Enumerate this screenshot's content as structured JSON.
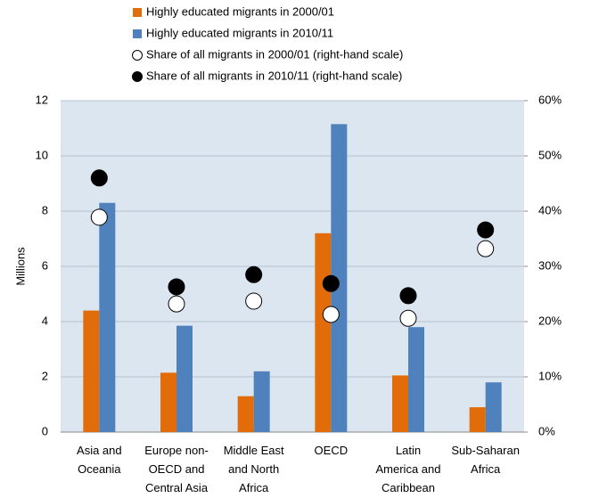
{
  "chart_data": {
    "type": "bar",
    "y_label": "Millions",
    "categories": [
      "Asia and\nOceania",
      "Europe non-\nOECD and\nCentral Asia",
      "Middle East\nand North\nAfrica",
      "OECD",
      "Latin\nAmerica and\nCaribbean",
      "Sub-Saharan\nAfrica"
    ],
    "series": [
      {
        "name": "Highly educated migrants in 2000/01",
        "color": "#e36c0a",
        "values": [
          4.4,
          2.15,
          1.3,
          7.2,
          2.05,
          0.9
        ]
      },
      {
        "name": "Highly educated migrants in 2010/11",
        "color": "#4f81bd",
        "values": [
          8.3,
          3.85,
          2.2,
          11.15,
          3.8,
          1.8
        ]
      },
      {
        "name": "Share of all migrants in 2000/01 (right-hand scale)",
        "color": "#ffffff",
        "axis": "y2",
        "values": [
          38.9,
          23.2,
          23.7,
          21.3,
          20.6,
          33.2
        ]
      },
      {
        "name": "Share of all migrants in 2010/11 (right-hand scale)",
        "color": "#000000",
        "axis": "y2",
        "values": [
          46,
          26.3,
          28.5,
          26.9,
          24.7,
          36.6
        ]
      }
    ],
    "ylim": [
      0,
      12
    ],
    "yticks": [
      0,
      2,
      4,
      6,
      8,
      10,
      12
    ],
    "y2lim": [
      0,
      60
    ],
    "y2ticks": [
      {
        "value": 0,
        "label": "0%"
      },
      {
        "value": 10,
        "label": "10%"
      },
      {
        "value": 20,
        "label": "20%"
      },
      {
        "value": 30,
        "label": "30%"
      },
      {
        "value": 40,
        "label": "40%"
      },
      {
        "value": 50,
        "label": "50%"
      },
      {
        "value": 60,
        "label": "60%"
      }
    ],
    "grid": true
  }
}
